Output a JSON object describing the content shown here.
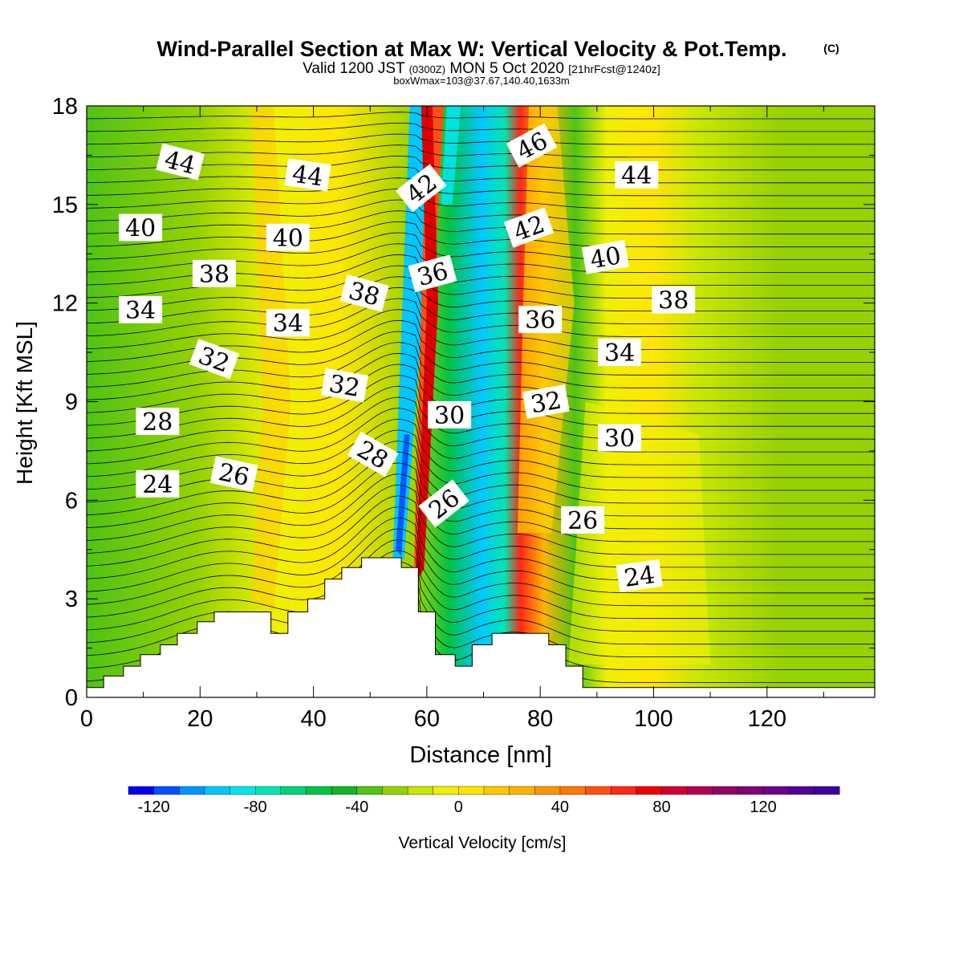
{
  "header": {
    "title": "Wind-Parallel Section at Max W: Vertical Velocity & Pot.Temp.",
    "title_mark": "(C)",
    "valid_prefix": "Valid 1200 JST",
    "valid_zulu": "(0300Z)",
    "valid_date": "MON 5 Oct 2020",
    "forecast": "[21hrFcst@1240z]",
    "boxinfo": "boxWmax=103@37.67,140.40,1633m"
  },
  "chart_data": {
    "type": "heatmap",
    "xlabel": "Distance [nm]",
    "ylabel": "Height [Kft MSL]",
    "xlim": [
      0,
      139
    ],
    "ylim": [
      0,
      18
    ],
    "xticks": [
      "0",
      "20",
      "40",
      "60",
      "80",
      "100",
      "120"
    ],
    "yticks": [
      "0",
      "3",
      "6",
      "9",
      "12",
      "15",
      "18"
    ],
    "terrain_kft": [
      [
        0,
        0.3
      ],
      [
        3,
        0.3
      ],
      [
        3,
        0.65
      ],
      [
        6.5,
        0.65
      ],
      [
        6.5,
        0.95
      ],
      [
        9.5,
        0.95
      ],
      [
        9.5,
        1.3
      ],
      [
        13,
        1.3
      ],
      [
        13,
        1.6
      ],
      [
        16,
        1.6
      ],
      [
        16,
        1.95
      ],
      [
        19.5,
        1.95
      ],
      [
        19.5,
        2.3
      ],
      [
        22.5,
        2.3
      ],
      [
        22.5,
        2.6
      ],
      [
        32.5,
        2.6
      ],
      [
        32.5,
        1.95
      ],
      [
        35.5,
        1.95
      ],
      [
        35.5,
        2.6
      ],
      [
        39,
        2.6
      ],
      [
        39,
        3.0
      ],
      [
        42,
        3.0
      ],
      [
        42,
        3.6
      ],
      [
        45,
        3.6
      ],
      [
        45,
        3.95
      ],
      [
        48.5,
        3.95
      ],
      [
        48.5,
        4.25
      ],
      [
        55.5,
        4.25
      ],
      [
        55.5,
        3.95
      ],
      [
        58.5,
        3.95
      ],
      [
        58.5,
        2.6
      ],
      [
        61.5,
        2.6
      ],
      [
        61.5,
        1.3
      ],
      [
        65,
        1.3
      ],
      [
        65,
        0.95
      ],
      [
        68,
        0.95
      ],
      [
        68,
        1.6
      ],
      [
        71.5,
        1.6
      ],
      [
        71.5,
        1.95
      ],
      [
        81.5,
        1.95
      ],
      [
        81.5,
        1.6
      ],
      [
        84.5,
        1.6
      ],
      [
        84.5,
        0.95
      ],
      [
        87.5,
        0.95
      ],
      [
        87.5,
        0.3
      ],
      [
        139,
        0.3
      ]
    ],
    "colorbar": {
      "label": "Vertical Velocity [cm/s]",
      "ticks": [
        "-120",
        "-80",
        "-40",
        "0",
        "40",
        "80",
        "120"
      ],
      "levels_min": -130,
      "levels_max": 150,
      "step": 10,
      "colors": [
        "#0000f0",
        "#0050ff",
        "#0096ff",
        "#00c8ff",
        "#00e6f0",
        "#00e6b4",
        "#00d278",
        "#00c346",
        "#14b428",
        "#50c314",
        "#96d200",
        "#c8e600",
        "#f0f000",
        "#ffe600",
        "#ffc800",
        "#ffb400",
        "#ff9600",
        "#ff7800",
        "#ff5014",
        "#ff2814",
        "#f00000",
        "#d20032",
        "#b40050",
        "#960064",
        "#820078",
        "#6e008c",
        "#500096",
        "#3c00a0"
      ]
    },
    "theta_contours_K": [
      "24",
      "26",
      "28",
      "30",
      "32",
      "34",
      "36",
      "38",
      "40",
      "42",
      "44",
      "46"
    ],
    "contour_labels": [
      {
        "text": "44",
        "x": 16.5,
        "y": 16.3,
        "rot": 14
      },
      {
        "text": "44",
        "x": 39,
        "y": 15.9,
        "rot": 8
      },
      {
        "text": "42",
        "x": 59,
        "y": 15.5,
        "rot": -38
      },
      {
        "text": "46",
        "x": 78.5,
        "y": 16.8,
        "rot": -28
      },
      {
        "text": "44",
        "x": 97,
        "y": 15.9,
        "rot": 0
      },
      {
        "text": "40",
        "x": 9.5,
        "y": 14.3,
        "rot": 0
      },
      {
        "text": "40",
        "x": 35.5,
        "y": 14
      },
      {
        "text": "42",
        "x": 78,
        "y": 14.3,
        "rot": -20
      },
      {
        "text": "40",
        "x": 91.5,
        "y": 13.4,
        "rot": -10
      },
      {
        "text": "38",
        "x": 22.5,
        "y": 12.9,
        "rot": 0
      },
      {
        "text": "38",
        "x": 49,
        "y": 12.3,
        "rot": 15
      },
      {
        "text": "36",
        "x": 61,
        "y": 12.9,
        "rot": -15
      },
      {
        "text": "38",
        "x": 103.5,
        "y": 12.1,
        "rot": 0
      },
      {
        "text": "34",
        "x": 9.5,
        "y": 11.8,
        "rot": 0
      },
      {
        "text": "34",
        "x": 35.5,
        "y": 11.4,
        "rot": 0
      },
      {
        "text": "36",
        "x": 80,
        "y": 11.5,
        "rot": 0
      },
      {
        "text": "32",
        "x": 22.5,
        "y": 10.3,
        "rot": 20
      },
      {
        "text": "34",
        "x": 94,
        "y": 10.5,
        "rot": 0
      },
      {
        "text": "32",
        "x": 45.5,
        "y": 9.5,
        "rot": 10
      },
      {
        "text": "32",
        "x": 81,
        "y": 9,
        "rot": -10
      },
      {
        "text": "30",
        "x": 64,
        "y": 8.6,
        "rot": 0
      },
      {
        "text": "28",
        "x": 12.5,
        "y": 8.4,
        "rot": 0
      },
      {
        "text": "30",
        "x": 94,
        "y": 7.9,
        "rot": 0
      },
      {
        "text": "28",
        "x": 50.5,
        "y": 7.4,
        "rot": 30
      },
      {
        "text": "26",
        "x": 26,
        "y": 6.8,
        "rot": 12
      },
      {
        "text": "24",
        "x": 12.5,
        "y": 6.5,
        "rot": 0
      },
      {
        "text": "26",
        "x": 63,
        "y": 5.9,
        "rot": -38
      },
      {
        "text": "26",
        "x": 87.5,
        "y": 5.4,
        "rot": 0
      },
      {
        "text": "24",
        "x": 97.5,
        "y": 3.7,
        "rot": -8
      }
    ]
  }
}
